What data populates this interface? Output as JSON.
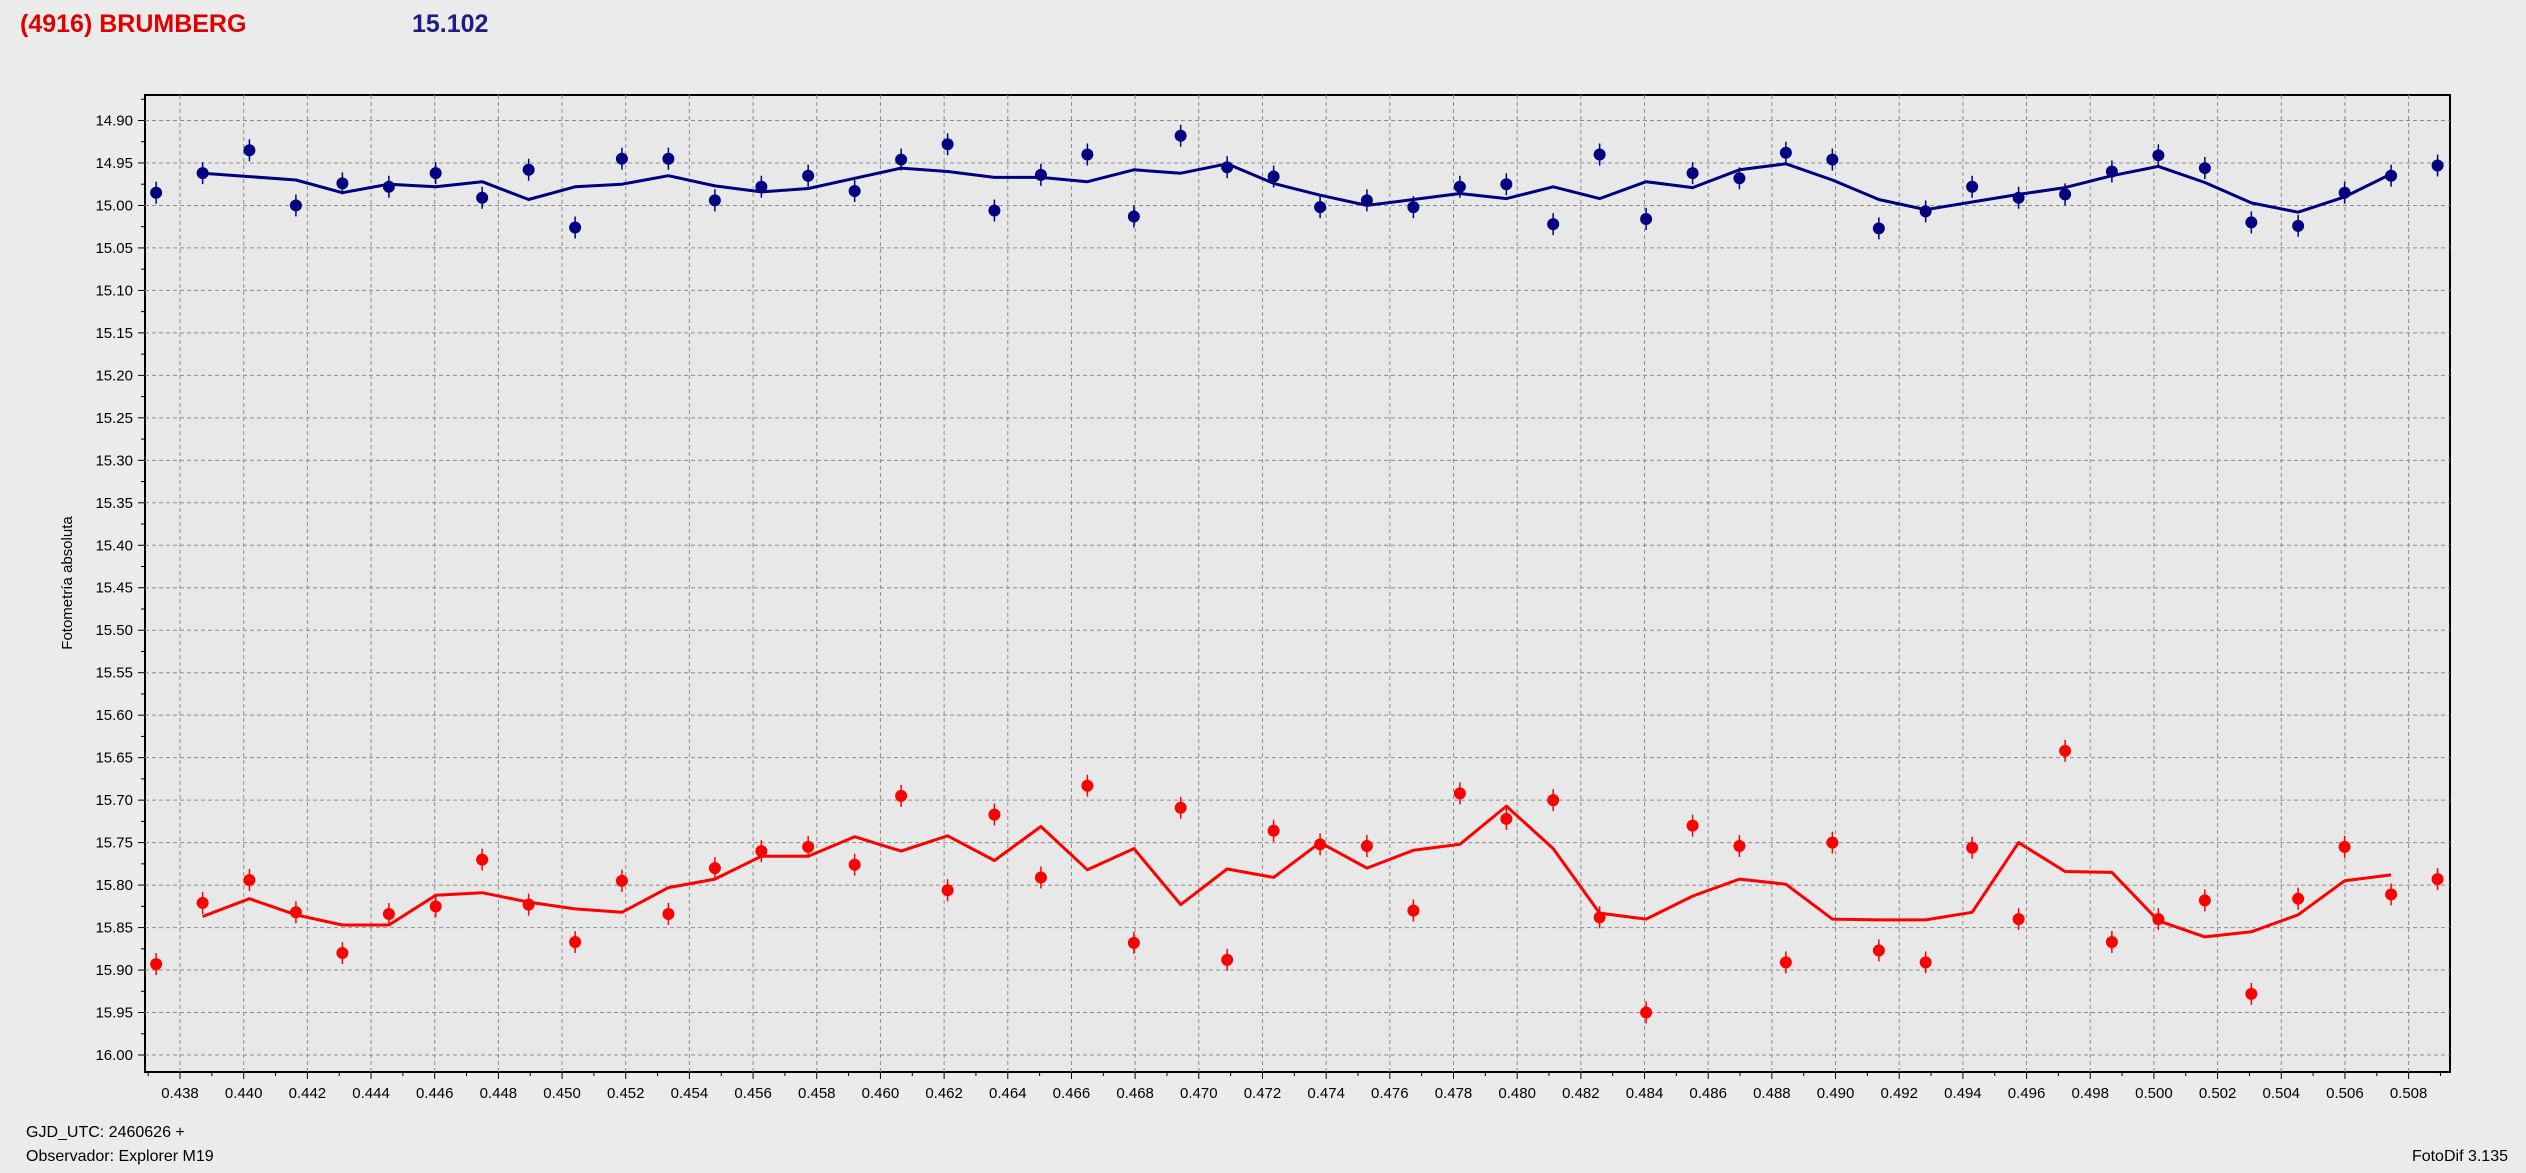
{
  "header": {
    "target": "(4916) BRUMBERG",
    "mean_magnitude": "15.102"
  },
  "footer": {
    "gjd": "GJD_UTC: 2460626 +",
    "observer": "Observador: Explorer M19",
    "software": "FotoDif 3.135"
  },
  "colors": {
    "target": "#ff0000",
    "comparison": "#000080",
    "grid": "#8c8c8c",
    "plot_bg": "#e8e8e8"
  },
  "chart_data": {
    "type": "scatter",
    "ylabel": "Fotometría absoluta",
    "xlabel": "",
    "xlim": [
      0.4369,
      0.5093
    ],
    "ylim": [
      16.02,
      14.87
    ],
    "y_inverted": true,
    "grid": true,
    "x_ticks": [
      "0.438",
      "0.440",
      "0.442",
      "0.444",
      "0.446",
      "0.448",
      "0.450",
      "0.452",
      "0.454",
      "0.456",
      "0.458",
      "0.460",
      "0.462",
      "0.464",
      "0.466",
      "0.468",
      "0.470",
      "0.472",
      "0.474",
      "0.476",
      "0.478",
      "0.480",
      "0.482",
      "0.484",
      "0.486",
      "0.488",
      "0.490",
      "0.492",
      "0.494",
      "0.496",
      "0.498",
      "0.500",
      "0.502",
      "0.504",
      "0.506",
      "0.508"
    ],
    "y_ticks": [
      "14.90",
      "14.95",
      "15.00",
      "15.05",
      "15.10",
      "15.15",
      "15.20",
      "15.25",
      "15.30",
      "15.35",
      "15.40",
      "15.45",
      "15.50",
      "15.55",
      "15.60",
      "15.65",
      "15.70",
      "15.75",
      "15.80",
      "15.85",
      "15.90",
      "15.95",
      "16.00"
    ],
    "series": [
      {
        "color": "#000080",
        "x": [
          0.43725,
          0.43871,
          0.44018,
          0.44164,
          0.4431,
          0.44456,
          0.44603,
          0.44749,
          0.44895,
          0.45041,
          0.45188,
          0.45334,
          0.4548,
          0.45626,
          0.45773,
          0.45919,
          0.46065,
          0.46211,
          0.46358,
          0.46504,
          0.4665,
          0.46796,
          0.46943,
          0.47089,
          0.47235,
          0.47381,
          0.47528,
          0.47674,
          0.4782,
          0.47966,
          0.48113,
          0.48259,
          0.48405,
          0.48551,
          0.48698,
          0.48844,
          0.4899,
          0.49136,
          0.49283,
          0.49429,
          0.49575,
          0.49721,
          0.49868,
          0.50014,
          0.5016,
          0.50306,
          0.50453,
          0.50599,
          0.50745,
          0.50891
        ],
        "y": [
          14.985,
          14.962,
          14.935,
          15.0,
          14.974,
          14.978,
          14.962,
          14.991,
          14.958,
          15.026,
          14.945,
          14.945,
          14.994,
          14.978,
          14.965,
          14.983,
          14.946,
          14.928,
          15.006,
          14.964,
          14.94,
          15.013,
          14.918,
          14.955,
          14.966,
          15.002,
          14.994,
          15.002,
          14.978,
          14.975,
          15.022,
          14.94,
          15.016,
          14.962,
          14.968,
          14.938,
          14.946,
          15.027,
          15.007,
          14.978,
          14.991,
          14.987,
          14.96,
          14.941,
          14.956,
          15.02,
          15.024,
          14.985,
          14.965,
          14.953
        ],
        "fit": [
          14.962,
          14.966,
          14.97,
          14.985,
          14.975,
          14.978,
          14.972,
          14.993,
          14.978,
          14.975,
          14.965,
          14.977,
          14.984,
          14.98,
          14.968,
          14.956,
          14.96,
          14.967,
          14.967,
          14.972,
          14.958,
          14.962,
          14.951,
          14.974,
          14.988,
          15.0,
          14.993,
          14.986,
          14.992,
          14.978,
          14.992,
          14.972,
          14.979,
          14.958,
          14.951,
          14.97,
          14.993,
          15.005,
          14.996,
          14.987,
          14.979,
          14.965,
          14.954,
          14.973,
          14.997,
          15.008,
          14.99,
          14.963
        ]
      },
      {
        "color": "#ff0000",
        "x": [
          0.43725,
          0.43871,
          0.44018,
          0.44164,
          0.4431,
          0.44456,
          0.44603,
          0.44749,
          0.44895,
          0.45041,
          0.45188,
          0.45334,
          0.4548,
          0.45626,
          0.45773,
          0.45919,
          0.46065,
          0.46211,
          0.46358,
          0.46504,
          0.4665,
          0.46796,
          0.46943,
          0.47089,
          0.47235,
          0.47381,
          0.47528,
          0.47674,
          0.4782,
          0.47966,
          0.48113,
          0.48259,
          0.48405,
          0.48551,
          0.48698,
          0.48844,
          0.4899,
          0.49136,
          0.49283,
          0.49429,
          0.49575,
          0.49721,
          0.49868,
          0.50014,
          0.5016,
          0.50306,
          0.50453,
          0.50599,
          0.50745,
          0.50891
        ],
        "y": [
          15.893,
          15.821,
          15.794,
          15.832,
          15.88,
          15.834,
          15.825,
          15.77,
          15.823,
          15.867,
          15.795,
          15.834,
          15.78,
          15.76,
          15.755,
          15.776,
          15.695,
          15.806,
          15.717,
          15.791,
          15.683,
          15.868,
          15.709,
          15.888,
          15.736,
          15.752,
          15.754,
          15.83,
          15.692,
          15.722,
          15.7,
          15.838,
          15.95,
          15.73,
          15.754,
          15.891,
          15.75,
          15.877,
          15.891,
          15.756,
          15.84,
          15.642,
          15.867,
          15.84,
          15.818,
          15.928,
          15.816,
          15.755,
          15.811,
          15.793
        ],
        "fit": [
          15.837,
          15.816,
          15.835,
          15.847,
          15.847,
          15.812,
          15.809,
          15.82,
          15.828,
          15.832,
          15.803,
          15.793,
          15.766,
          15.766,
          15.743,
          15.76,
          15.742,
          15.771,
          15.731,
          15.782,
          15.757,
          15.823,
          15.781,
          15.791,
          15.75,
          15.78,
          15.759,
          15.752,
          15.707,
          15.757,
          15.833,
          15.84,
          15.813,
          15.793,
          15.799,
          15.84,
          15.841,
          15.841,
          15.832,
          15.75,
          15.784,
          15.785,
          15.842,
          15.861,
          15.855,
          15.835,
          15.795,
          15.788
        ]
      }
    ]
  }
}
